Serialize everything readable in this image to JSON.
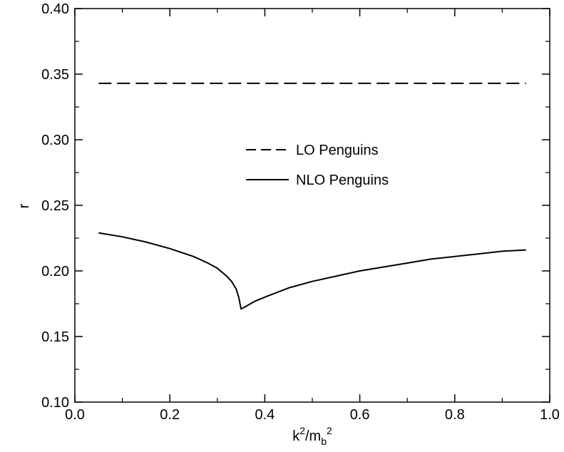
{
  "chart_data": {
    "type": "line",
    "title": "",
    "xlabel": "k²/m_b²",
    "ylabel": "r",
    "xlim": [
      0.0,
      1.0
    ],
    "ylim": [
      0.1,
      0.4
    ],
    "x_ticks": [
      0.0,
      0.2,
      0.4,
      0.6,
      0.8,
      1.0
    ],
    "x_tick_labels": [
      "0.0",
      "0.2",
      "0.4",
      "0.6",
      "0.8",
      "1.0"
    ],
    "y_ticks": [
      0.1,
      0.15,
      0.2,
      0.25,
      0.3,
      0.35,
      0.4
    ],
    "y_tick_labels": [
      "0.10",
      "0.15",
      "0.20",
      "0.25",
      "0.30",
      "0.35",
      "0.40"
    ],
    "grid": false,
    "legend_position": "center",
    "series": [
      {
        "name": "LO Penguins",
        "style": "dashed",
        "color": "#000000",
        "x": [
          0.05,
          0.95
        ],
        "y": [
          0.343,
          0.343
        ]
      },
      {
        "name": "NLO Penguins",
        "style": "solid",
        "color": "#000000",
        "x": [
          0.05,
          0.1,
          0.15,
          0.2,
          0.25,
          0.28,
          0.3,
          0.32,
          0.33,
          0.34,
          0.345,
          0.35,
          0.36,
          0.38,
          0.4,
          0.45,
          0.5,
          0.55,
          0.6,
          0.65,
          0.7,
          0.75,
          0.8,
          0.85,
          0.9,
          0.95
        ],
        "y": [
          0.229,
          0.226,
          0.222,
          0.217,
          0.211,
          0.206,
          0.202,
          0.196,
          0.192,
          0.186,
          0.18,
          0.171,
          0.173,
          0.177,
          0.18,
          0.187,
          0.192,
          0.196,
          0.2,
          0.203,
          0.206,
          0.209,
          0.211,
          0.213,
          0.215,
          0.216
        ]
      }
    ]
  }
}
